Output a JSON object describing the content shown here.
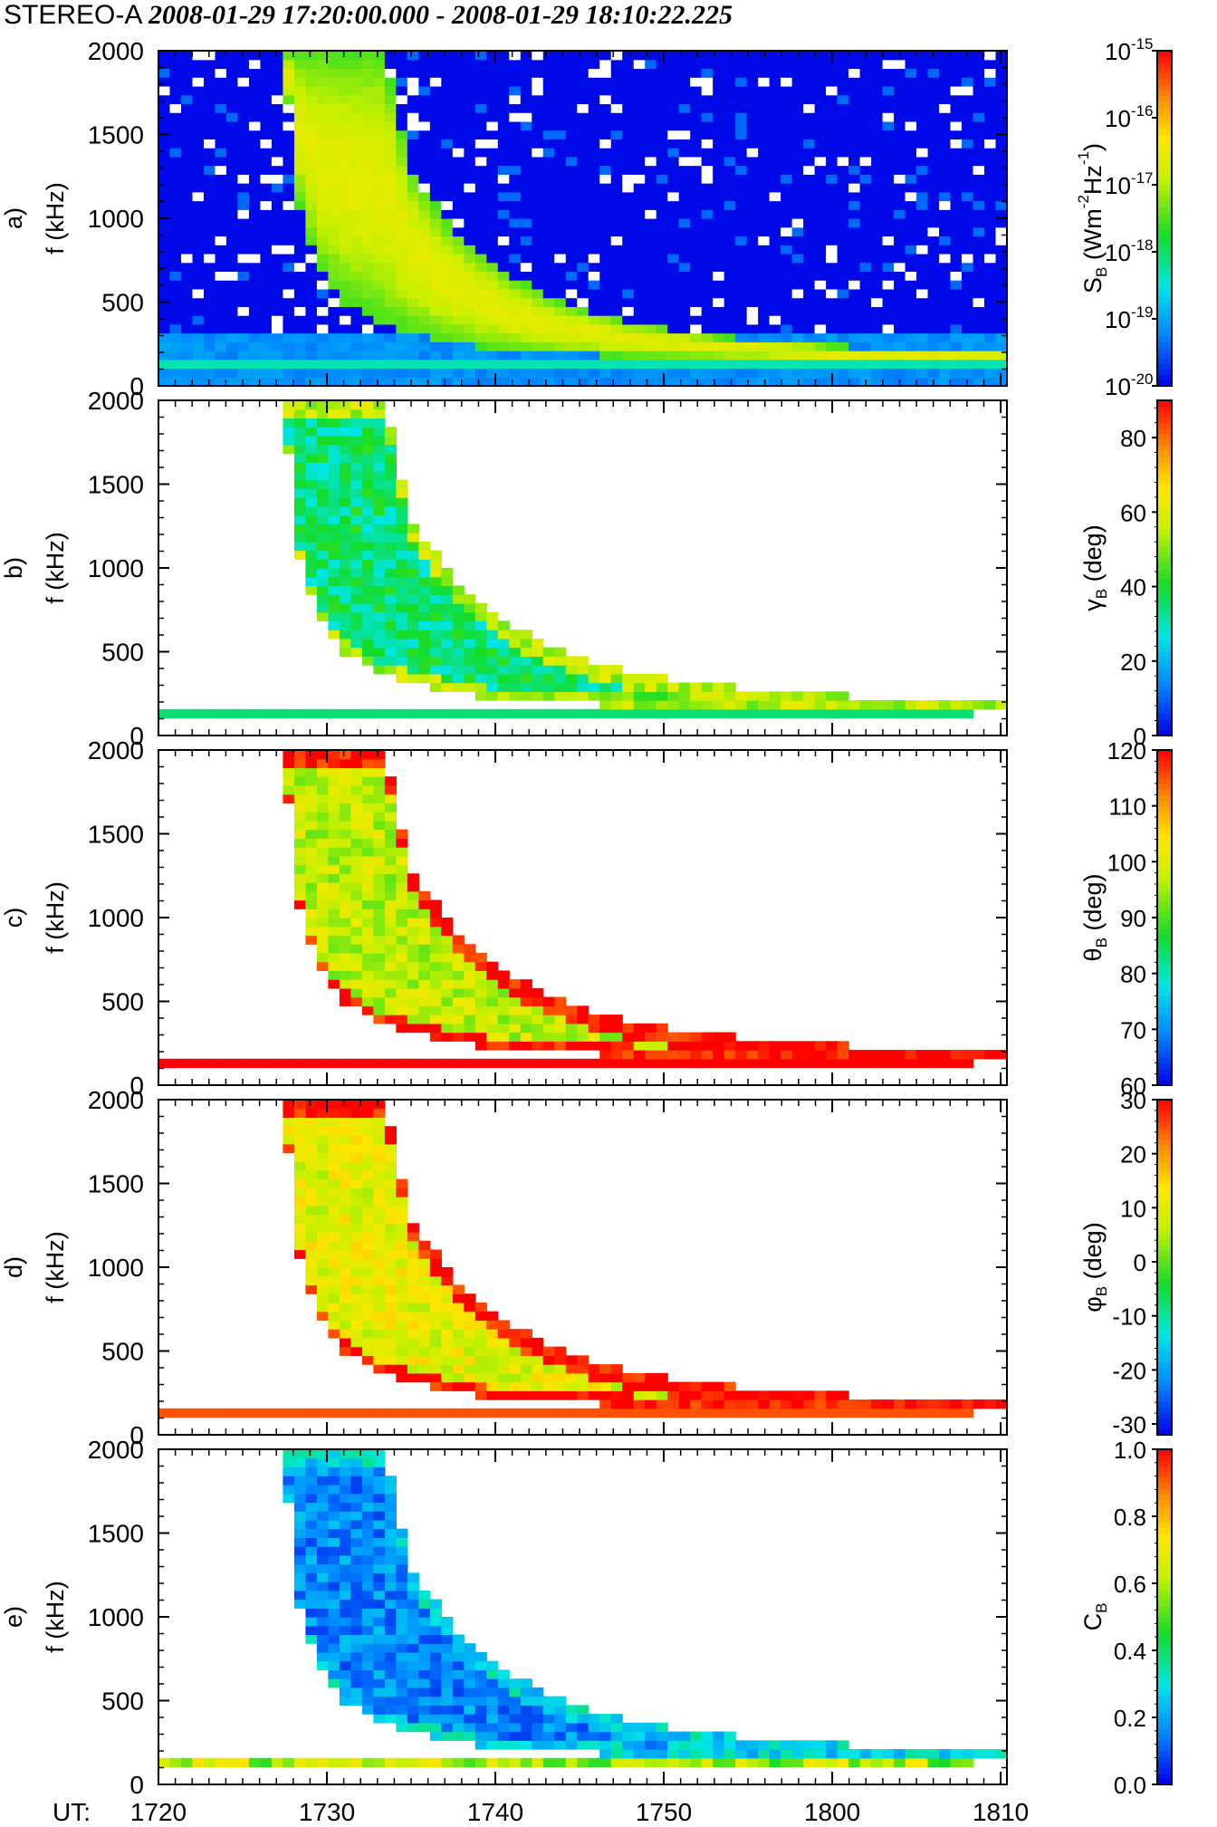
{
  "title": {
    "instrument": "STEREO-A",
    "time_range": "2008-01-29 17:20:00.000 - 2008-01-29 18:10:22.225"
  },
  "chart_data": {
    "type": "heatmap",
    "x_axis": {
      "prefix_label": "UT:",
      "tick_labels": [
        "1720",
        "1730",
        "1740",
        "1750",
        "1800",
        "1810"
      ],
      "tick_minutes": [
        0,
        10,
        20,
        30,
        40,
        50
      ],
      "range_minutes": [
        0,
        50.37
      ],
      "start_time": "17:20:00"
    },
    "y_axis": {
      "label": "f (kHz)",
      "range": [
        0,
        2000
      ],
      "ticks": [
        0,
        500,
        1000,
        1500,
        2000
      ],
      "tick_labels": [
        "0",
        "500",
        "1000",
        "1500",
        "2000"
      ]
    },
    "panels": [
      {
        "id": "a",
        "label": "a)",
        "quantity": "S_B",
        "colorbar_label": "S_B (Wm^-2 Hz^-1)",
        "scale": "log",
        "range": [
          1e-20,
          1e-15
        ],
        "ticks": [
          -20,
          -19,
          -18,
          -17,
          -16,
          -15
        ],
        "tick_labels": [
          "10-20",
          "10-19",
          "10-18",
          "10-17",
          "10-16",
          "10-15"
        ],
        "background": "blue (~1e-20) with white data gaps",
        "burst": "intense green/yellow drifting burst; onset ~17:27 at 2000 kHz, reaching ~150 kHz by ~18:10",
        "low_freq_band_kHz": 140
      },
      {
        "id": "b",
        "label": "b)",
        "quantity": "gamma_B",
        "colorbar_label": "gamma_B (deg)",
        "scale": "linear",
        "range": [
          0,
          90
        ],
        "ticks": [
          0,
          20,
          40,
          60,
          80
        ],
        "tick_labels": [
          "0",
          "20",
          "40",
          "60",
          "80"
        ],
        "typical_value": 35,
        "edge_value": 55
      },
      {
        "id": "c",
        "label": "c)",
        "quantity": "theta_B",
        "colorbar_label": "theta_B (deg)",
        "scale": "linear",
        "range": [
          60,
          120
        ],
        "ticks": [
          60,
          70,
          80,
          90,
          100,
          110,
          120
        ],
        "tick_labels": [
          "60",
          "70",
          "80",
          "90",
          "100",
          "110",
          "120"
        ],
        "typical_value": 97,
        "edge_value": 120
      },
      {
        "id": "d",
        "label": "d)",
        "quantity": "phi_B",
        "colorbar_label": "phi_B (deg)",
        "scale": "linear",
        "range": [
          -32,
          30
        ],
        "ticks": [
          -30,
          -20,
          -10,
          0,
          10,
          20,
          30
        ],
        "tick_labels": [
          "-30",
          "-20",
          "-10",
          "0",
          "10",
          "20",
          "30"
        ],
        "typical_value": 10,
        "edge_value": 30
      },
      {
        "id": "e",
        "label": "e)",
        "quantity": "C_B",
        "colorbar_label": "C_B",
        "scale": "linear",
        "range": [
          0,
          1
        ],
        "ticks": [
          0,
          0.2,
          0.4,
          0.6,
          0.8,
          1.0
        ],
        "tick_labels": [
          "0.0",
          "0.2",
          "0.4",
          "0.6",
          "0.8",
          "1.0"
        ],
        "typical_value": 0.16,
        "edge_value": 0.28
      }
    ],
    "burst_envelope": {
      "description": "approximate frequency vs UT minutes (from 17:20) of the drifting type III burst edges",
      "onset_minute_at_2000kHz": 7,
      "low_edge": [
        [
          7.5,
          2000
        ],
        [
          8,
          1300
        ],
        [
          8.5,
          1000
        ],
        [
          9.5,
          700
        ],
        [
          11,
          500
        ],
        [
          13,
          380
        ],
        [
          15,
          320
        ],
        [
          18,
          250
        ],
        [
          22,
          200
        ],
        [
          30,
          170
        ],
        [
          40,
          150
        ],
        [
          50,
          145
        ]
      ],
      "high_edge": [
        [
          13.5,
          2000
        ],
        [
          14,
          1700
        ],
        [
          15,
          1300
        ],
        [
          17,
          1000
        ],
        [
          19,
          800
        ],
        [
          21,
          650
        ],
        [
          24,
          500
        ],
        [
          28,
          380
        ],
        [
          33,
          300
        ],
        [
          40,
          240
        ],
        [
          48,
          210
        ],
        [
          50,
          200
        ]
      ]
    }
  }
}
